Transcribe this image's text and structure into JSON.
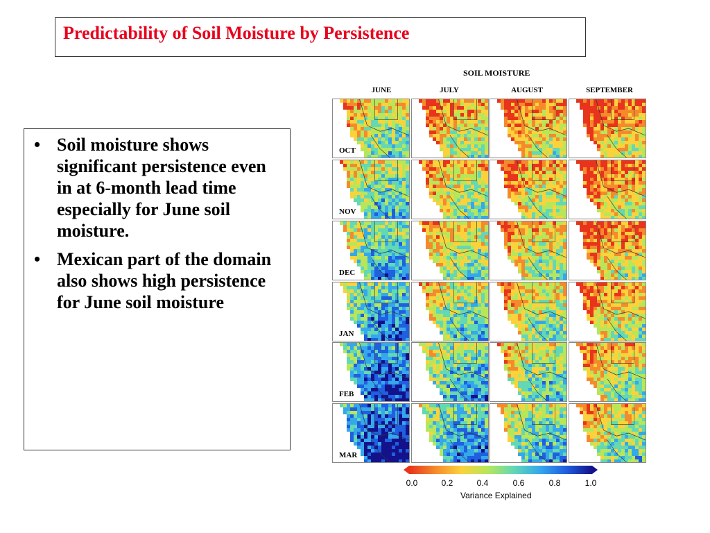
{
  "title": "Predictability of Soil Moisture by Persistence",
  "bullets": [
    "Soil moisture shows significant persistence even in at 6-month lead time especially for June soil moisture.",
    "Mexican part of the domain also shows high persistence for June soil moisture"
  ],
  "bullet_marker": "•",
  "figure": {
    "title": "SOIL MOISTURE",
    "columns": [
      "JUNE",
      "JULY",
      "AUGUST",
      "SEPTEMBER"
    ],
    "rows": [
      "OCT",
      "NOV",
      "DEC",
      "JAN",
      "FEB",
      "MAR"
    ],
    "colorbar": {
      "label": "Variance Explained",
      "ticks": [
        "0.0",
        "0.2",
        "0.4",
        "0.6",
        "0.8",
        "1.0"
      ],
      "range": [
        0.0,
        1.0
      ],
      "colors": [
        "#e8341c",
        "#f58a2c",
        "#fbd23c",
        "#b8e65a",
        "#63d8b4",
        "#35a8ec",
        "#1f5fe0",
        "#13128a"
      ]
    },
    "panel_mean_variance": [
      [
        0.42,
        0.3,
        0.25,
        0.2
      ],
      [
        0.5,
        0.35,
        0.3,
        0.22
      ],
      [
        0.58,
        0.4,
        0.34,
        0.25
      ],
      [
        0.68,
        0.48,
        0.4,
        0.3
      ],
      [
        0.78,
        0.58,
        0.48,
        0.36
      ],
      [
        0.88,
        0.66,
        0.55,
        0.4
      ]
    ]
  }
}
